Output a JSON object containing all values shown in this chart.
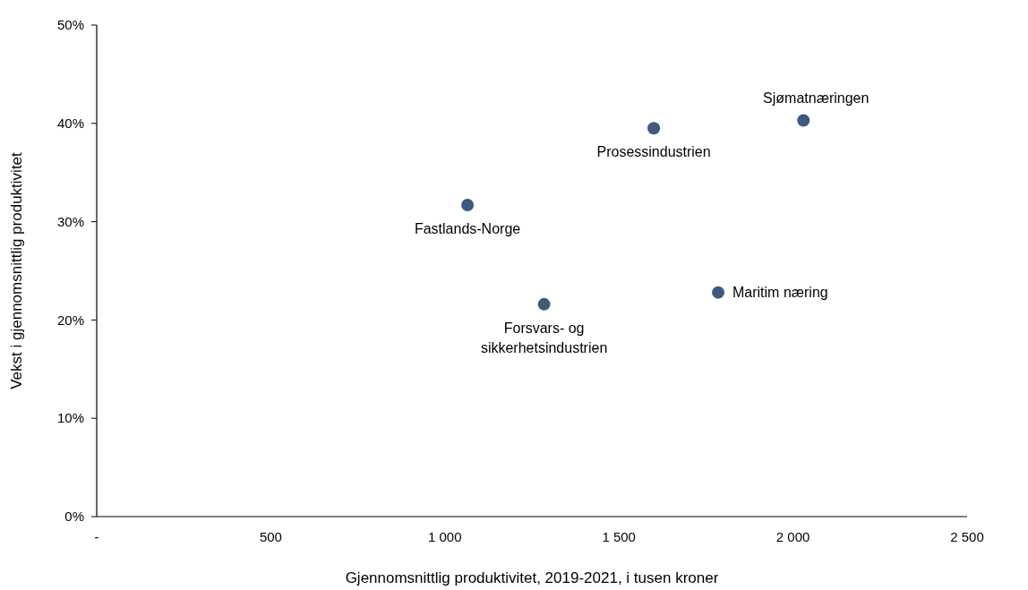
{
  "chart_data": {
    "type": "scatter",
    "xlabel": "Gjennomsnittlig produktivitet, 2019-2021, i tusen kroner",
    "ylabel": "Vekst i gjennomsnittlig produktivitet",
    "x": [
      1065,
      1285,
      1600,
      1785,
      2030
    ],
    "series": [
      {
        "color": "#3e5a7e",
        "values": [
          31.7,
          21.6,
          39.5,
          22.8,
          40.3
        ]
      }
    ],
    "xlim": [
      0,
      2500
    ],
    "xticks": [
      {
        "value": 0,
        "label": "-"
      },
      500,
      {
        "value": 1000,
        "label": "1 000"
      },
      {
        "value": 1500,
        "label": "1 500"
      },
      {
        "value": 2000,
        "label": "2 000"
      },
      {
        "value": 2500,
        "label": "2 500"
      }
    ],
    "ylim": [
      0,
      50
    ],
    "yticks": [
      {
        "value": 0,
        "label": "0%"
      },
      {
        "value": 10,
        "label": "10%"
      },
      {
        "value": 20,
        "label": "20%"
      },
      {
        "value": 30,
        "label": "30%"
      },
      {
        "value": 40,
        "label": "40%"
      },
      {
        "value": 50,
        "label": "50%"
      }
    ],
    "marker": "circle",
    "grid": false,
    "annotations": [
      {
        "text": "Fastlands-Norge",
        "x": 1065,
        "y": 31.7
      },
      {
        "text": "Forsvars- og\nsikkerhetsindustrien",
        "x": 1285,
        "y": 21.6
      },
      {
        "text": "Prosessindustrien",
        "x": 1600,
        "y": 39.5
      },
      {
        "text": "Maritim næring",
        "x": 1785,
        "y": 22.8
      },
      {
        "text": "Sjømatnæringen",
        "x": 2030,
        "y": 40.3
      }
    ]
  }
}
